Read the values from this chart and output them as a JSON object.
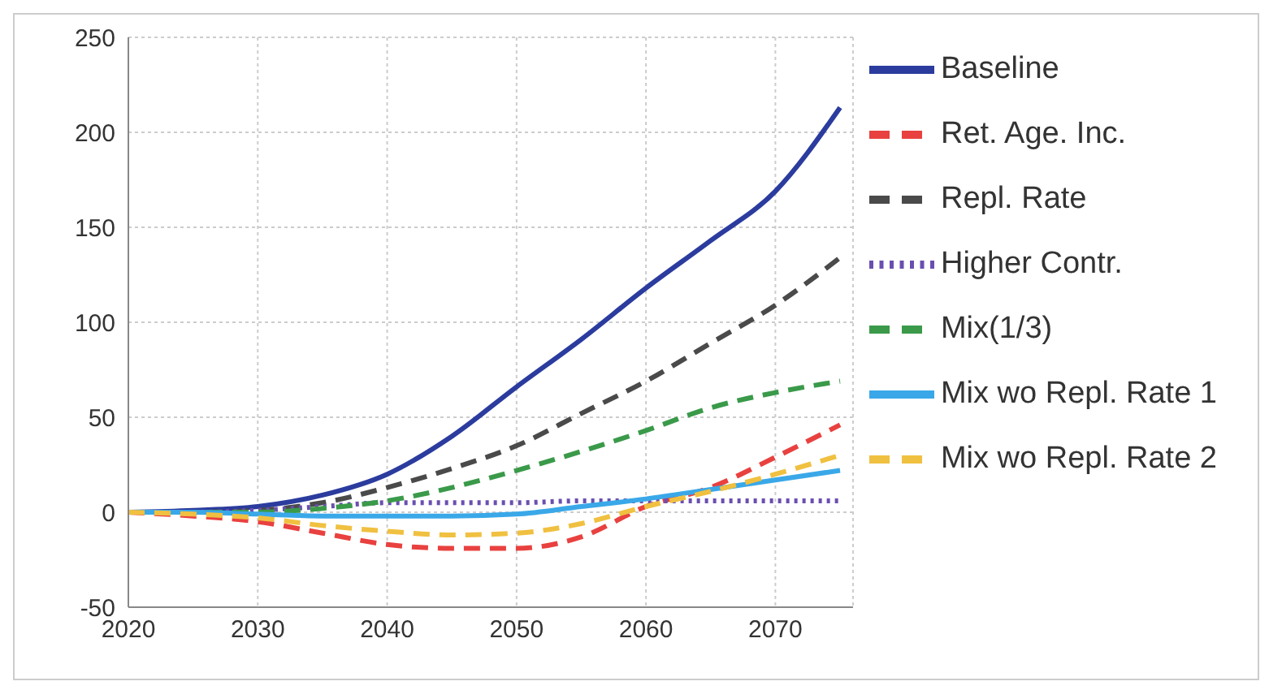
{
  "chart_data": {
    "type": "line",
    "x": [
      2020,
      2025,
      2030,
      2035,
      2040,
      2045,
      2050,
      2055,
      2060,
      2065,
      2070,
      2075
    ],
    "xlim": [
      2020,
      2076
    ],
    "xticks": [
      2020,
      2030,
      2040,
      2050,
      2060,
      2070
    ],
    "ylim": [
      -50,
      250
    ],
    "yticks": [
      -50,
      0,
      50,
      100,
      150,
      200,
      250
    ],
    "grid": true,
    "legend": "right",
    "marker": "none",
    "series": [
      {
        "name": "Baseline",
        "color": "#2b3c9e",
        "line_style": "solid",
        "values": [
          0,
          1,
          3,
          9,
          20,
          40,
          66,
          91,
          118,
          143,
          169,
          213
        ]
      },
      {
        "name": "Ret. Age. Inc.",
        "color": "#e8413f",
        "line_style": "dashed",
        "values": [
          0,
          -2,
          -5,
          -11,
          -17,
          -19,
          -19,
          -13,
          3,
          13,
          29,
          46
        ]
      },
      {
        "name": "Repl. Rate",
        "color": "#4a4a4a",
        "line_style": "dashed",
        "values": [
          0,
          0,
          1,
          5,
          13,
          23,
          35,
          52,
          69,
          89,
          109,
          134
        ]
      },
      {
        "name": "Higher Contr.",
        "color": "#6a4fb0",
        "line_style": "dotted",
        "values": [
          0,
          0,
          1,
          3,
          5,
          5,
          5,
          6,
          6,
          6,
          6,
          6
        ]
      },
      {
        "name": "Mix(1/3)",
        "color": "#3a9a4a",
        "line_style": "dashed",
        "values": [
          0,
          0,
          0,
          2,
          6,
          13,
          22,
          32,
          43,
          55,
          63,
          69
        ]
      },
      {
        "name": "Mix wo Repl. Rate 1",
        "color": "#3aa8e8",
        "line_style": "solid",
        "values": [
          0,
          0,
          -1,
          -2,
          -2,
          -2,
          -1,
          3,
          7,
          12,
          17,
          22
        ]
      },
      {
        "name": "Mix wo Repl. Rate 2",
        "color": "#f0c040",
        "line_style": "dashed",
        "values": [
          0,
          -1,
          -3,
          -7,
          -10,
          -12,
          -11,
          -6,
          3,
          11,
          20,
          30
        ]
      }
    ]
  }
}
